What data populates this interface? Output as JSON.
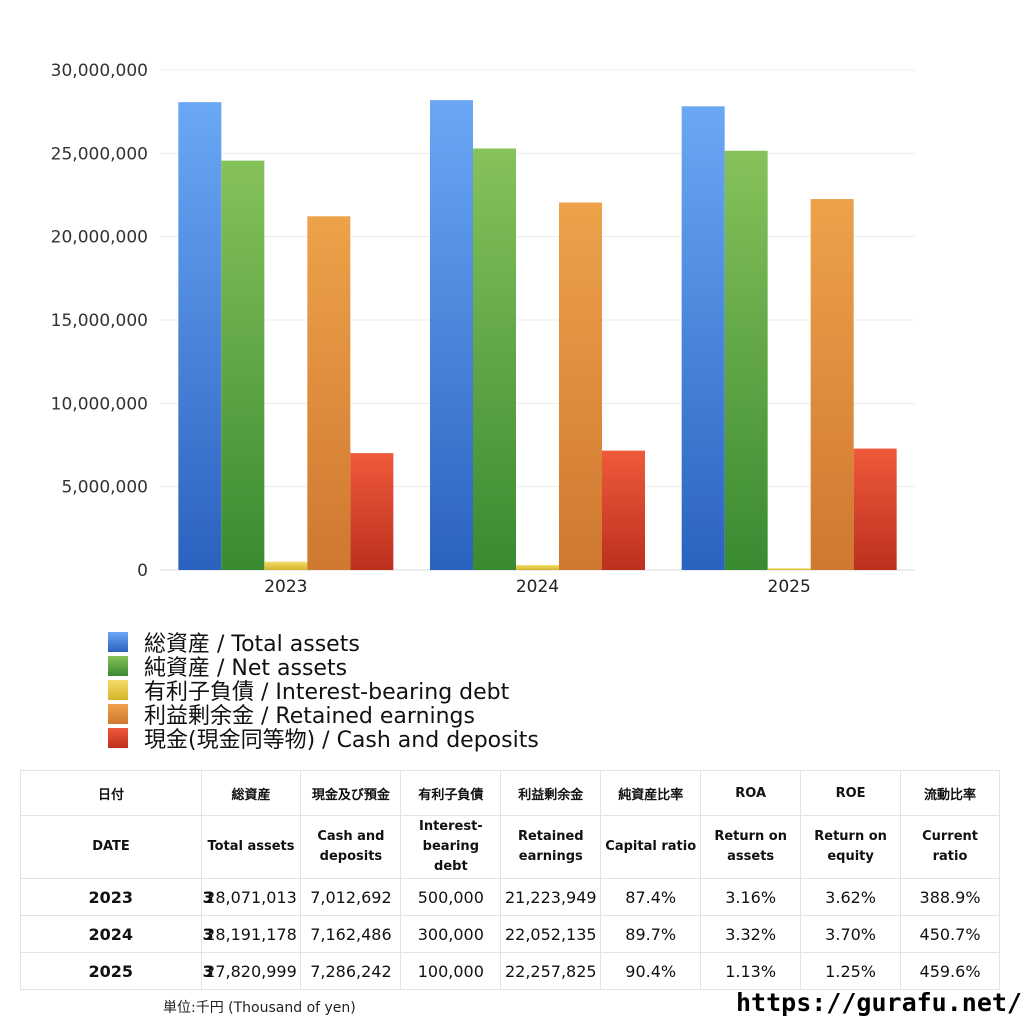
{
  "chart_data": {
    "type": "bar",
    "categories": [
      "2023",
      "2024",
      "2025"
    ],
    "ylim": [
      0,
      30000000
    ],
    "yticks": [
      0,
      5000000,
      10000000,
      15000000,
      20000000,
      25000000,
      30000000
    ],
    "ytick_labels": [
      "0",
      "5,000,000",
      "10,000,000",
      "15,000,000",
      "20,000,000",
      "25,000,000",
      "30,000,000"
    ],
    "grid": true,
    "legend_position": "bottom",
    "series": [
      {
        "name": "総資産 / Total assets",
        "values": [
          28071013,
          28191178,
          27820999
        ],
        "color_top": "#6aa8f5",
        "color_bottom": "#2b62c0"
      },
      {
        "name": "純資産 / Net assets",
        "values": [
          24562000,
          25290000,
          25155000
        ],
        "color_top": "#86c25a",
        "color_bottom": "#3a8a32"
      },
      {
        "name": "有利子負債 / Interest-bearing debt",
        "values": [
          500000,
          300000,
          100000
        ],
        "color_top": "#f5dc68",
        "color_bottom": "#d4b52a"
      },
      {
        "name": "利益剰余金 / Retained earnings",
        "values": [
          21223949,
          22052135,
          22257825
        ],
        "color_top": "#eda24a",
        "color_bottom": "#cf7830"
      },
      {
        "name": "現金(現金同等物)  /  Cash and deposits",
        "values": [
          7012692,
          7162486,
          7286242
        ],
        "color_top": "#ee5a3a",
        "color_bottom": "#bd2f1e"
      }
    ]
  },
  "table": {
    "header_jp": [
      "日付",
      "",
      "総資産",
      "現金及び預金",
      "有利子負債",
      "利益剰余金",
      "純資産比率",
      "ROA",
      "ROE",
      "流動比率"
    ],
    "header_en": [
      [
        "DATE"
      ],
      [
        ""
      ],
      [
        "Total assets"
      ],
      [
        "Cash and",
        "deposits"
      ],
      [
        "Interest-",
        "bearing",
        "debt"
      ],
      [
        "Retained",
        "earnings"
      ],
      [
        "Capital ratio"
      ],
      [
        "Return on",
        "assets"
      ],
      [
        "Return on",
        "equity"
      ],
      [
        "Current",
        "ratio"
      ]
    ],
    "rows": [
      [
        "2023",
        "3",
        "28,071,013",
        "7,012,692",
        "500,000",
        "21,223,949",
        "87.4%",
        "3.16%",
        "3.62%",
        "388.9%"
      ],
      [
        "2024",
        "3",
        "28,191,178",
        "7,162,486",
        "300,000",
        "22,052,135",
        "89.7%",
        "3.32%",
        "3.70%",
        "450.7%"
      ],
      [
        "2025",
        "3",
        "27,820,999",
        "7,286,242",
        "100,000",
        "22,257,825",
        "90.4%",
        "1.13%",
        "1.25%",
        "459.6%"
      ]
    ]
  },
  "footer": {
    "unit_note": "単位:千円 (Thousand of yen)",
    "site_url": "https://gurafu.net/"
  }
}
